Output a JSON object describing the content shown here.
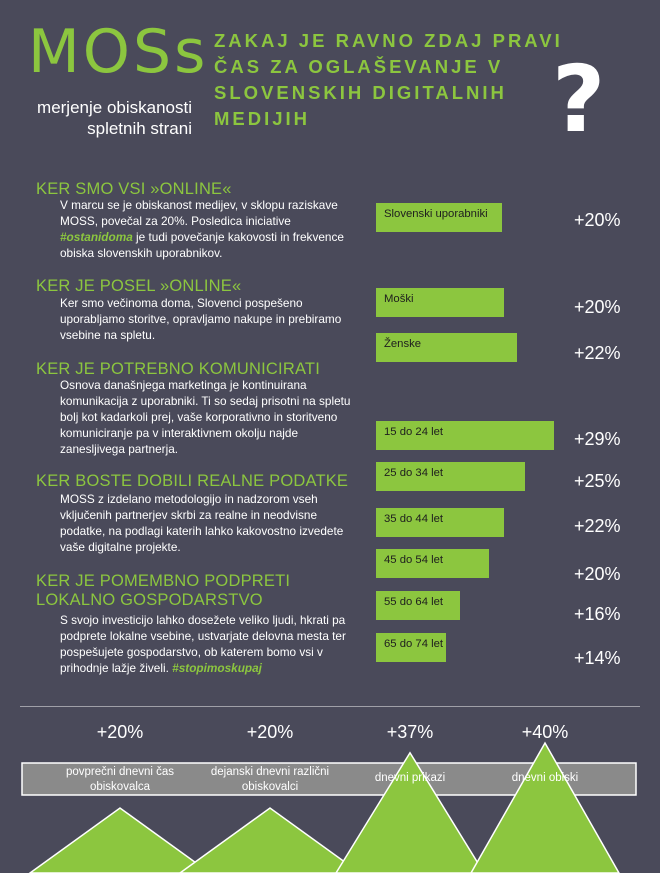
{
  "logo": {
    "name": "MOSs",
    "sub_line1": "merjenje obiskanosti",
    "sub_line2": "spletnih strani"
  },
  "headline": {
    "line1": "ZAKAJ JE RAVNO ZDAJ PRAVI",
    "line2": "ČAS ZA OGLAŠEVANJE V",
    "line3": "SLOVENSKIH DIGITALNIH",
    "line4": "MEDIJIH",
    "qmark": "?"
  },
  "sections": [
    {
      "title": "KER SMO VSI »ONLINE«",
      "body_a": "V marcu se je obiskanost medijev, v sklopu raziskave MOSS, povečal za 20%. Posledica iniciative ",
      "body_hl": "#ostanidoma",
      "body_b": " je tudi povečanje kakovosti in frekvence obiska slovenskih uporabnikov."
    },
    {
      "title": "KER JE POSEL »ONLINE«",
      "body_a": "Ker smo večinoma doma, Slovenci pospešeno uporabljamo storitve, opravljamo nakupe in prebiramo vsebine na spletu."
    },
    {
      "title": "KER JE POTREBNO KOMUNICIRATI",
      "body_a": "Osnova današnjega marketinga je kontinuirana komunikacija z uporabniki. Ti so sedaj prisotni na spletu bolj kot kadarkoli prej, vaše korporativno in storitveno komuniciranje pa v interaktivnem okolju najde zanesljivega partnerja."
    },
    {
      "title": "KER BOSTE DOBILI REALNE PODATKE",
      "body_a": "MOSS z izdelano metodologijo in nadzorom vseh vključenih partnerjev skrbi za realne in neodvisne podatke, na podlagi katerih lahko kakovostno izvedete vaše digitalne projekte."
    },
    {
      "title": "KER JE POMEMBNO PODPRETI",
      "title2": "LOKALNO GOSPODARSTVO",
      "body_a": "S svojo investicijo lahko dosežete veliko ljudi, hkrati pa podprete lokalne vsebine, ustvarjate delovna mesta ter pospešujete gospodarstvo, ob katerem bomo vsi v prihodnje lažje živeli. ",
      "body_hl": "#stopimoskupaj"
    }
  ],
  "chart_data": [
    {
      "type": "bar",
      "orientation": "horizontal",
      "categories": [
        "Slovenski uporabniki",
        "Moški",
        "Ženske",
        "15 do 24 let",
        "25 do 34 let",
        "35 do 44 let",
        "45 do 54 let",
        "55 do 64 let",
        "65 do 74 let"
      ],
      "values": [
        20,
        20,
        22,
        29,
        25,
        22,
        20,
        16,
        14
      ],
      "value_labels": [
        "+20%",
        "+20%",
        "+22%",
        "+29%",
        "+25%",
        "+22%",
        "+20%",
        "+16%",
        "+14%"
      ],
      "bar_color": "#8cc63f"
    },
    {
      "type": "area",
      "shape": "triangles",
      "categories": [
        "povprečni dnevni čas obiskovalca",
        "dejanski dnevni različni obiskovalci",
        "dnevni prikazi",
        "dnevni obiski"
      ],
      "values": [
        20,
        20,
        37,
        40
      ],
      "value_labels": [
        "+20%",
        "+20%",
        "+37%",
        "+40%"
      ],
      "color": "#8cc63f"
    }
  ],
  "colors": {
    "background": "#4a4a5a",
    "accent": "#8cc63f",
    "text": "#ffffff"
  }
}
